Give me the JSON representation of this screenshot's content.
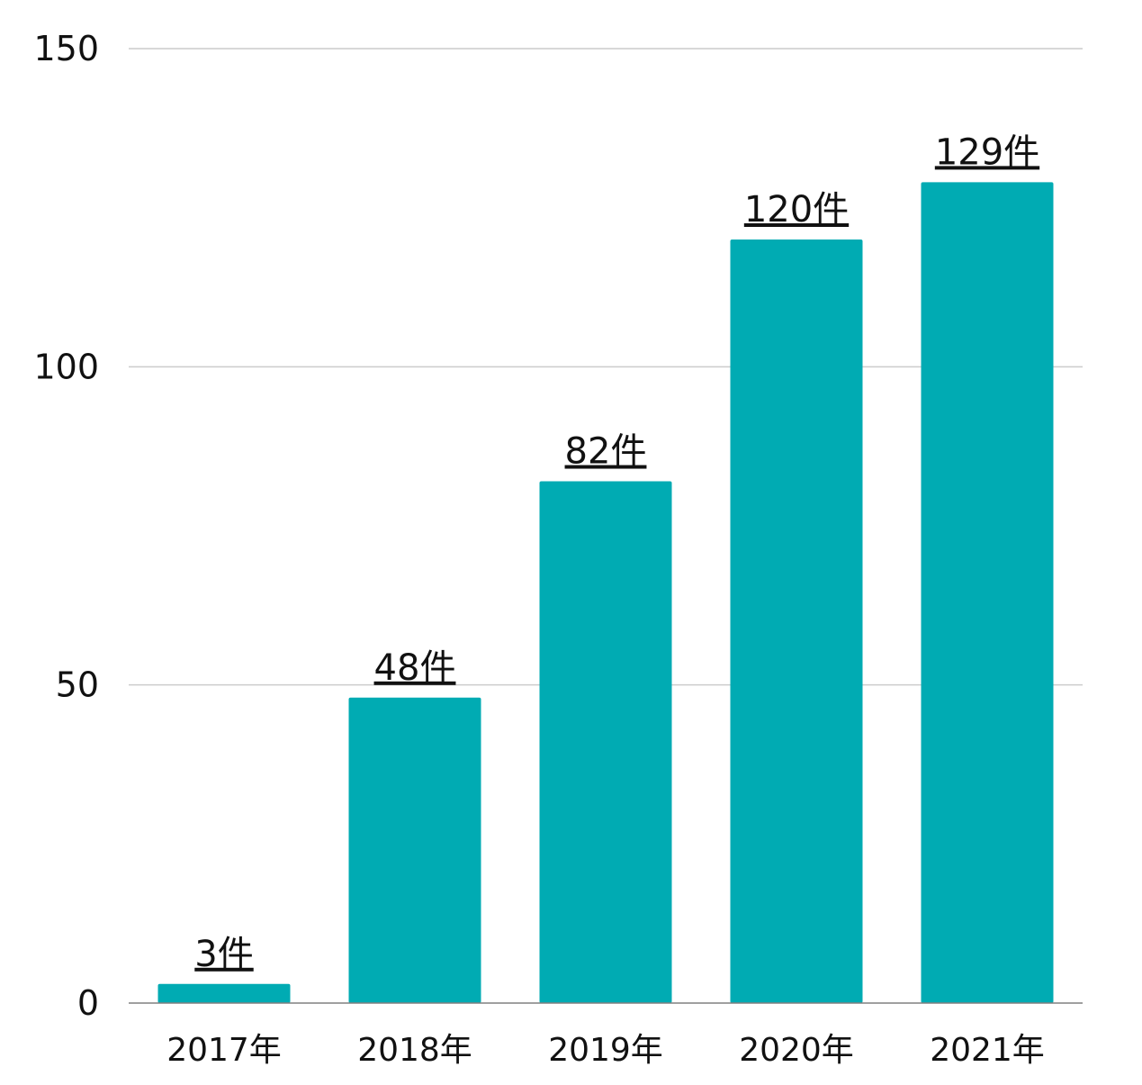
{
  "chart_data": {
    "type": "bar",
    "categories": [
      "2017年",
      "2018年",
      "2019年",
      "2020年",
      "2021年"
    ],
    "values": [
      3,
      48,
      82,
      120,
      129
    ],
    "data_labels": [
      "3件",
      "48件",
      "82件",
      "120件",
      "129件"
    ],
    "ylim": [
      0,
      150
    ],
    "yticks": [
      0,
      50,
      100,
      150
    ],
    "grid": true,
    "legend": "none",
    "bar_color": "#00abb3",
    "title": "",
    "xlabel": "",
    "ylabel": ""
  }
}
